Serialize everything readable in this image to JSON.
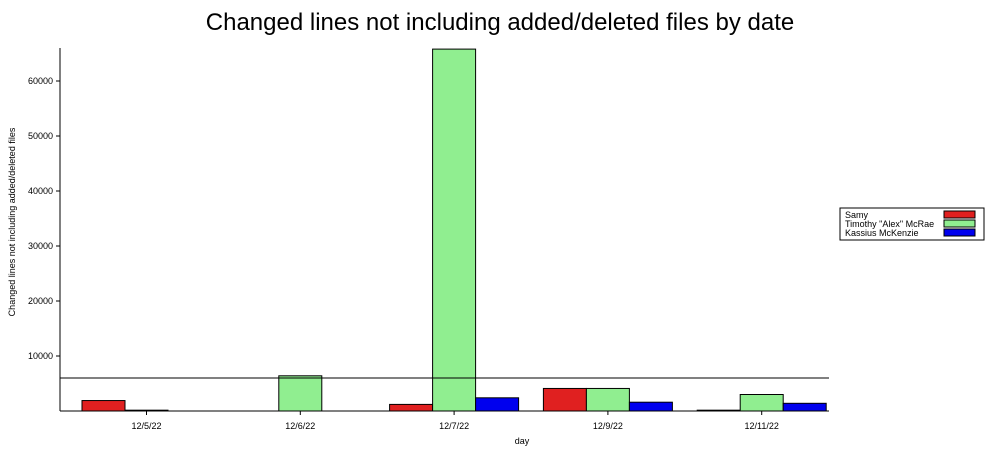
{
  "chart_data": {
    "type": "bar",
    "title": "Changed lines not including added/deleted files by date",
    "xlabel": "day",
    "ylabel": "Changed lines not including added/deleted files",
    "categories": [
      "12/5/22",
      "12/6/22",
      "12/7/22",
      "12/9/22",
      "12/11/22"
    ],
    "series": [
      {
        "name": "Samy",
        "color": "#e02020",
        "values": [
          1900,
          0,
          1200,
          4100,
          150
        ]
      },
      {
        "name": "Timothy \"Alex\" McRae",
        "color": "#90ee90",
        "values": [
          150,
          6400,
          65800,
          4100,
          3000
        ]
      },
      {
        "name": "Kassius McKenzie",
        "color": "#0000ee",
        "values": [
          0,
          0,
          2400,
          1600,
          1400
        ]
      }
    ],
    "ylim": [
      0,
      66000
    ],
    "yticks": [
      10000,
      20000,
      30000,
      40000,
      50000,
      60000
    ],
    "reference_line": 6000,
    "legend_position": "right",
    "grid": false
  }
}
